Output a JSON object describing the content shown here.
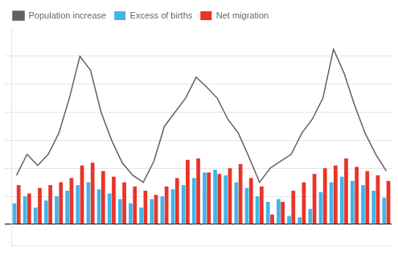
{
  "chart_data": {
    "type": "bar",
    "categories": [
      null,
      null,
      null,
      null,
      null,
      null,
      null,
      null,
      null,
      null,
      null,
      null,
      null,
      null,
      null,
      null,
      null,
      null,
      null,
      null,
      null,
      null,
      null,
      null,
      null,
      null,
      null,
      null,
      null,
      null,
      null,
      null,
      null,
      null,
      null,
      null
    ],
    "series": [
      {
        "name": "Excess of births",
        "type": "bar",
        "color": "#41b6e6",
        "values": [
          1500,
          2000,
          1200,
          1700,
          2000,
          2400,
          2800,
          3000,
          2500,
          2200,
          1800,
          1500,
          1200,
          1800,
          2000,
          2500,
          2800,
          3300,
          3700,
          3900,
          3500,
          3000,
          2600,
          2000,
          1600,
          1800,
          600,
          500,
          1100,
          2300,
          3000,
          3400,
          3100,
          2800,
          2400,
          1900
        ]
      },
      {
        "name": "Net migration",
        "type": "bar",
        "color": "#e8342a",
        "values": [
          2800,
          2200,
          2600,
          2800,
          3000,
          3300,
          4200,
          4400,
          3800,
          3400,
          3000,
          2700,
          2400,
          2100,
          2700,
          3300,
          4600,
          4700,
          3700,
          3600,
          4000,
          4300,
          3300,
          2700,
          700,
          1600,
          2400,
          3000,
          3600,
          4000,
          4200,
          4700,
          4100,
          3800,
          3500,
          3100
        ]
      },
      {
        "name": "Population increase",
        "type": "line",
        "color": "#606060",
        "marker": "none",
        "values": [
          3500,
          5000,
          4200,
          5000,
          6500,
          9000,
          12000,
          11000,
          8000,
          6000,
          4400,
          3500,
          3000,
          4500,
          7000,
          8000,
          9000,
          10500,
          9800,
          9000,
          7500,
          6500,
          4800,
          3000,
          4000,
          4500,
          5000,
          6500,
          7500,
          9000,
          12500,
          10800,
          8500,
          6500,
          5000,
          3800
        ]
      }
    ],
    "ylim": [
      -1500,
      14000
    ],
    "yticks": [
      0,
      2000,
      4000,
      6000,
      8000,
      10000,
      12000
    ],
    "grid": true,
    "legend": "upper left",
    "tick_labels": false
  }
}
